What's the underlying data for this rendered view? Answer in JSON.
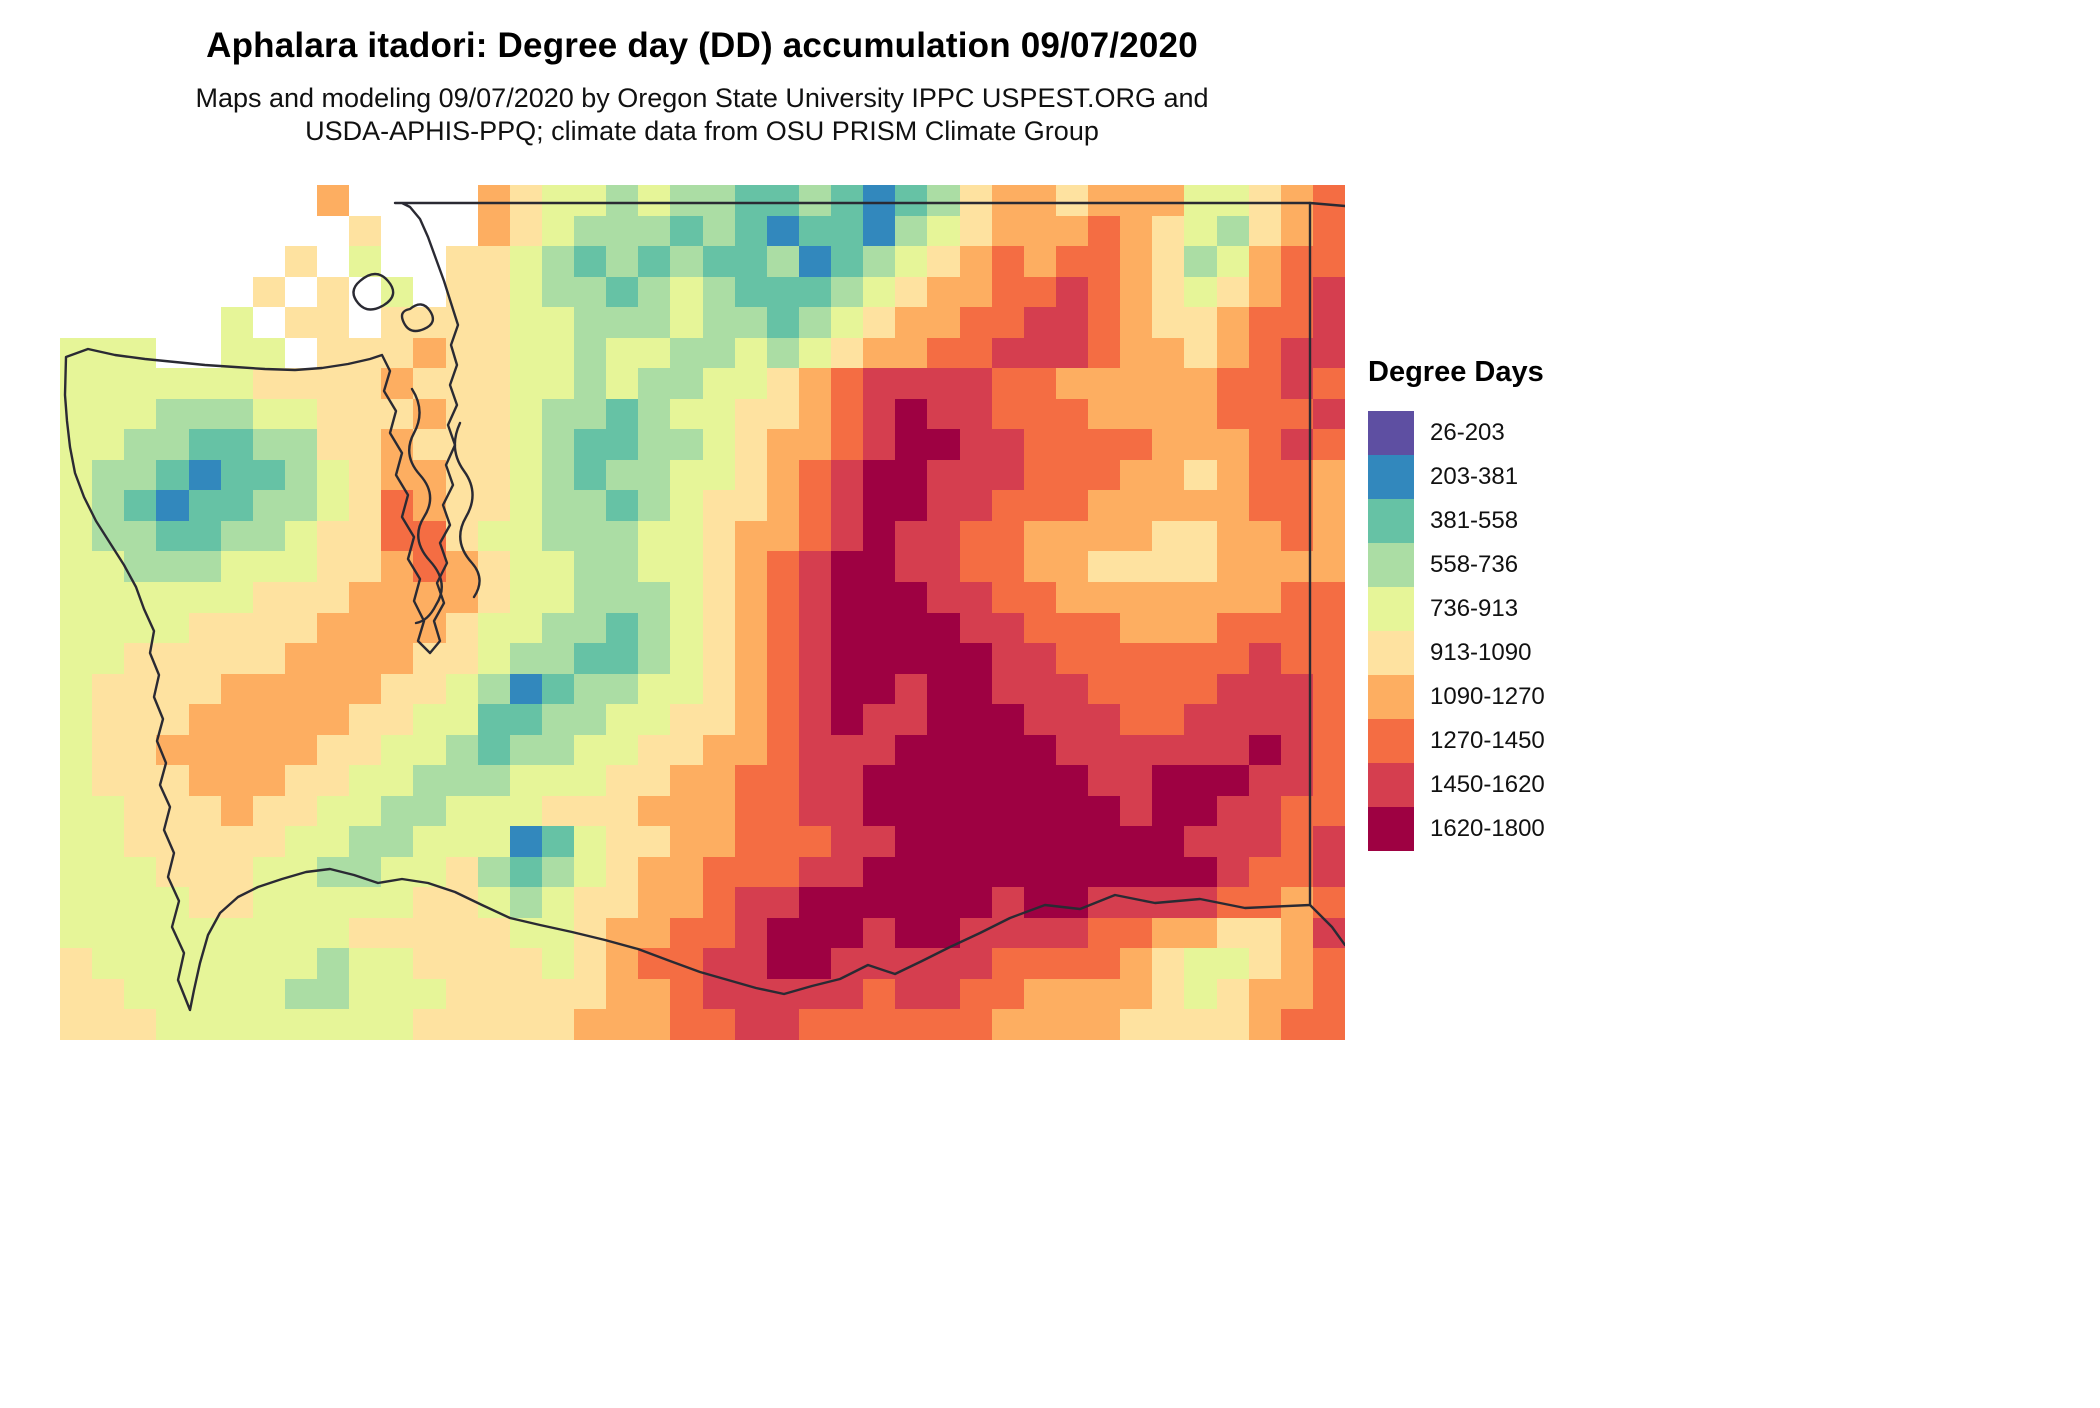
{
  "header": {
    "title": "Aphalara itadori: Degree day (DD) accumulation 09/07/2020",
    "subtitle_line1": "Maps and modeling 09/07/2020 by Oregon State University IPPC USPEST.ORG and",
    "subtitle_line2": "USDA-APHIS-PPQ; climate data from OSU PRISM Climate Group"
  },
  "legend": {
    "title": "Degree Days"
  },
  "chart_data": {
    "type": "heatmap",
    "region": "Washington State",
    "variable": "Degree day (DD) accumulation",
    "date": "09/07/2020",
    "legend_title": "Degree Days",
    "bins": [
      {
        "range": "26-203",
        "color": "#5e4fa2"
      },
      {
        "range": "203-381",
        "color": "#3288bd"
      },
      {
        "range": "381-558",
        "color": "#66c2a5"
      },
      {
        "range": "558-736",
        "color": "#abdda4"
      },
      {
        "range": "736-913",
        "color": "#e6f598"
      },
      {
        "range": "913-1090",
        "color": "#fee2a0"
      },
      {
        "range": "1090-1270",
        "color": "#fdae61"
      },
      {
        "range": "1270-1450",
        "color": "#f46d43"
      },
      {
        "range": "1450-1620",
        "color": "#d53e4f"
      },
      {
        "range": "1620-1800",
        "color": "#9e0142"
      }
    ],
    "no_data_char": ".",
    "grid_note": "Each character is a bin index 0-9; '.' = no data (white). 40 cols x 28 rows.",
    "grid": [
      "........6....654434332232123566566644567",
      ".........5...654333232122134566676543567",
      ".......5.4..5543232322312345676776534677",
      "......5.5.4.5543323432223456677876545678",
      ".....4.55.555544333433234566778876556778",
      "444..44.55565544344334345667788876656788",
      "4444445555655544343344567888877666667787",
      "4443334455565543323445567898877766667778",
      "4433223355655543223345667899887777666787",
      "4332122345665543233445678998887776656776",
      "4321223345765543323455678998877766666776",
      "4332233455775443334456678988776666556676",
      "4433344455676544334456789988776655556666",
      "4444445556666544333456789998877666666677",
      "4444555566665443323456789999887776667777",
      "4455555666655433223456789999988777777877",
      "4555566666554312334456789989988877778887",
      "4555666665544223344556789889998887788887",
      "4556666655443233445566788899999888888987",
      "4555666554433344455667788999999988999887",
      "4455565544334445556667788999999998998877",
      "4455555443344412455667778899999999988878",
      "4445554433445323456677788999999999998778",
      "4444554444455434556678899999989988887767",
      "4444444445555544566778999899888877665568",
      "5444444434455554567788998888877776544567",
      "5544444334445555566788888788776666545667",
      "5554444444455555666778877777766665555677"
    ]
  }
}
